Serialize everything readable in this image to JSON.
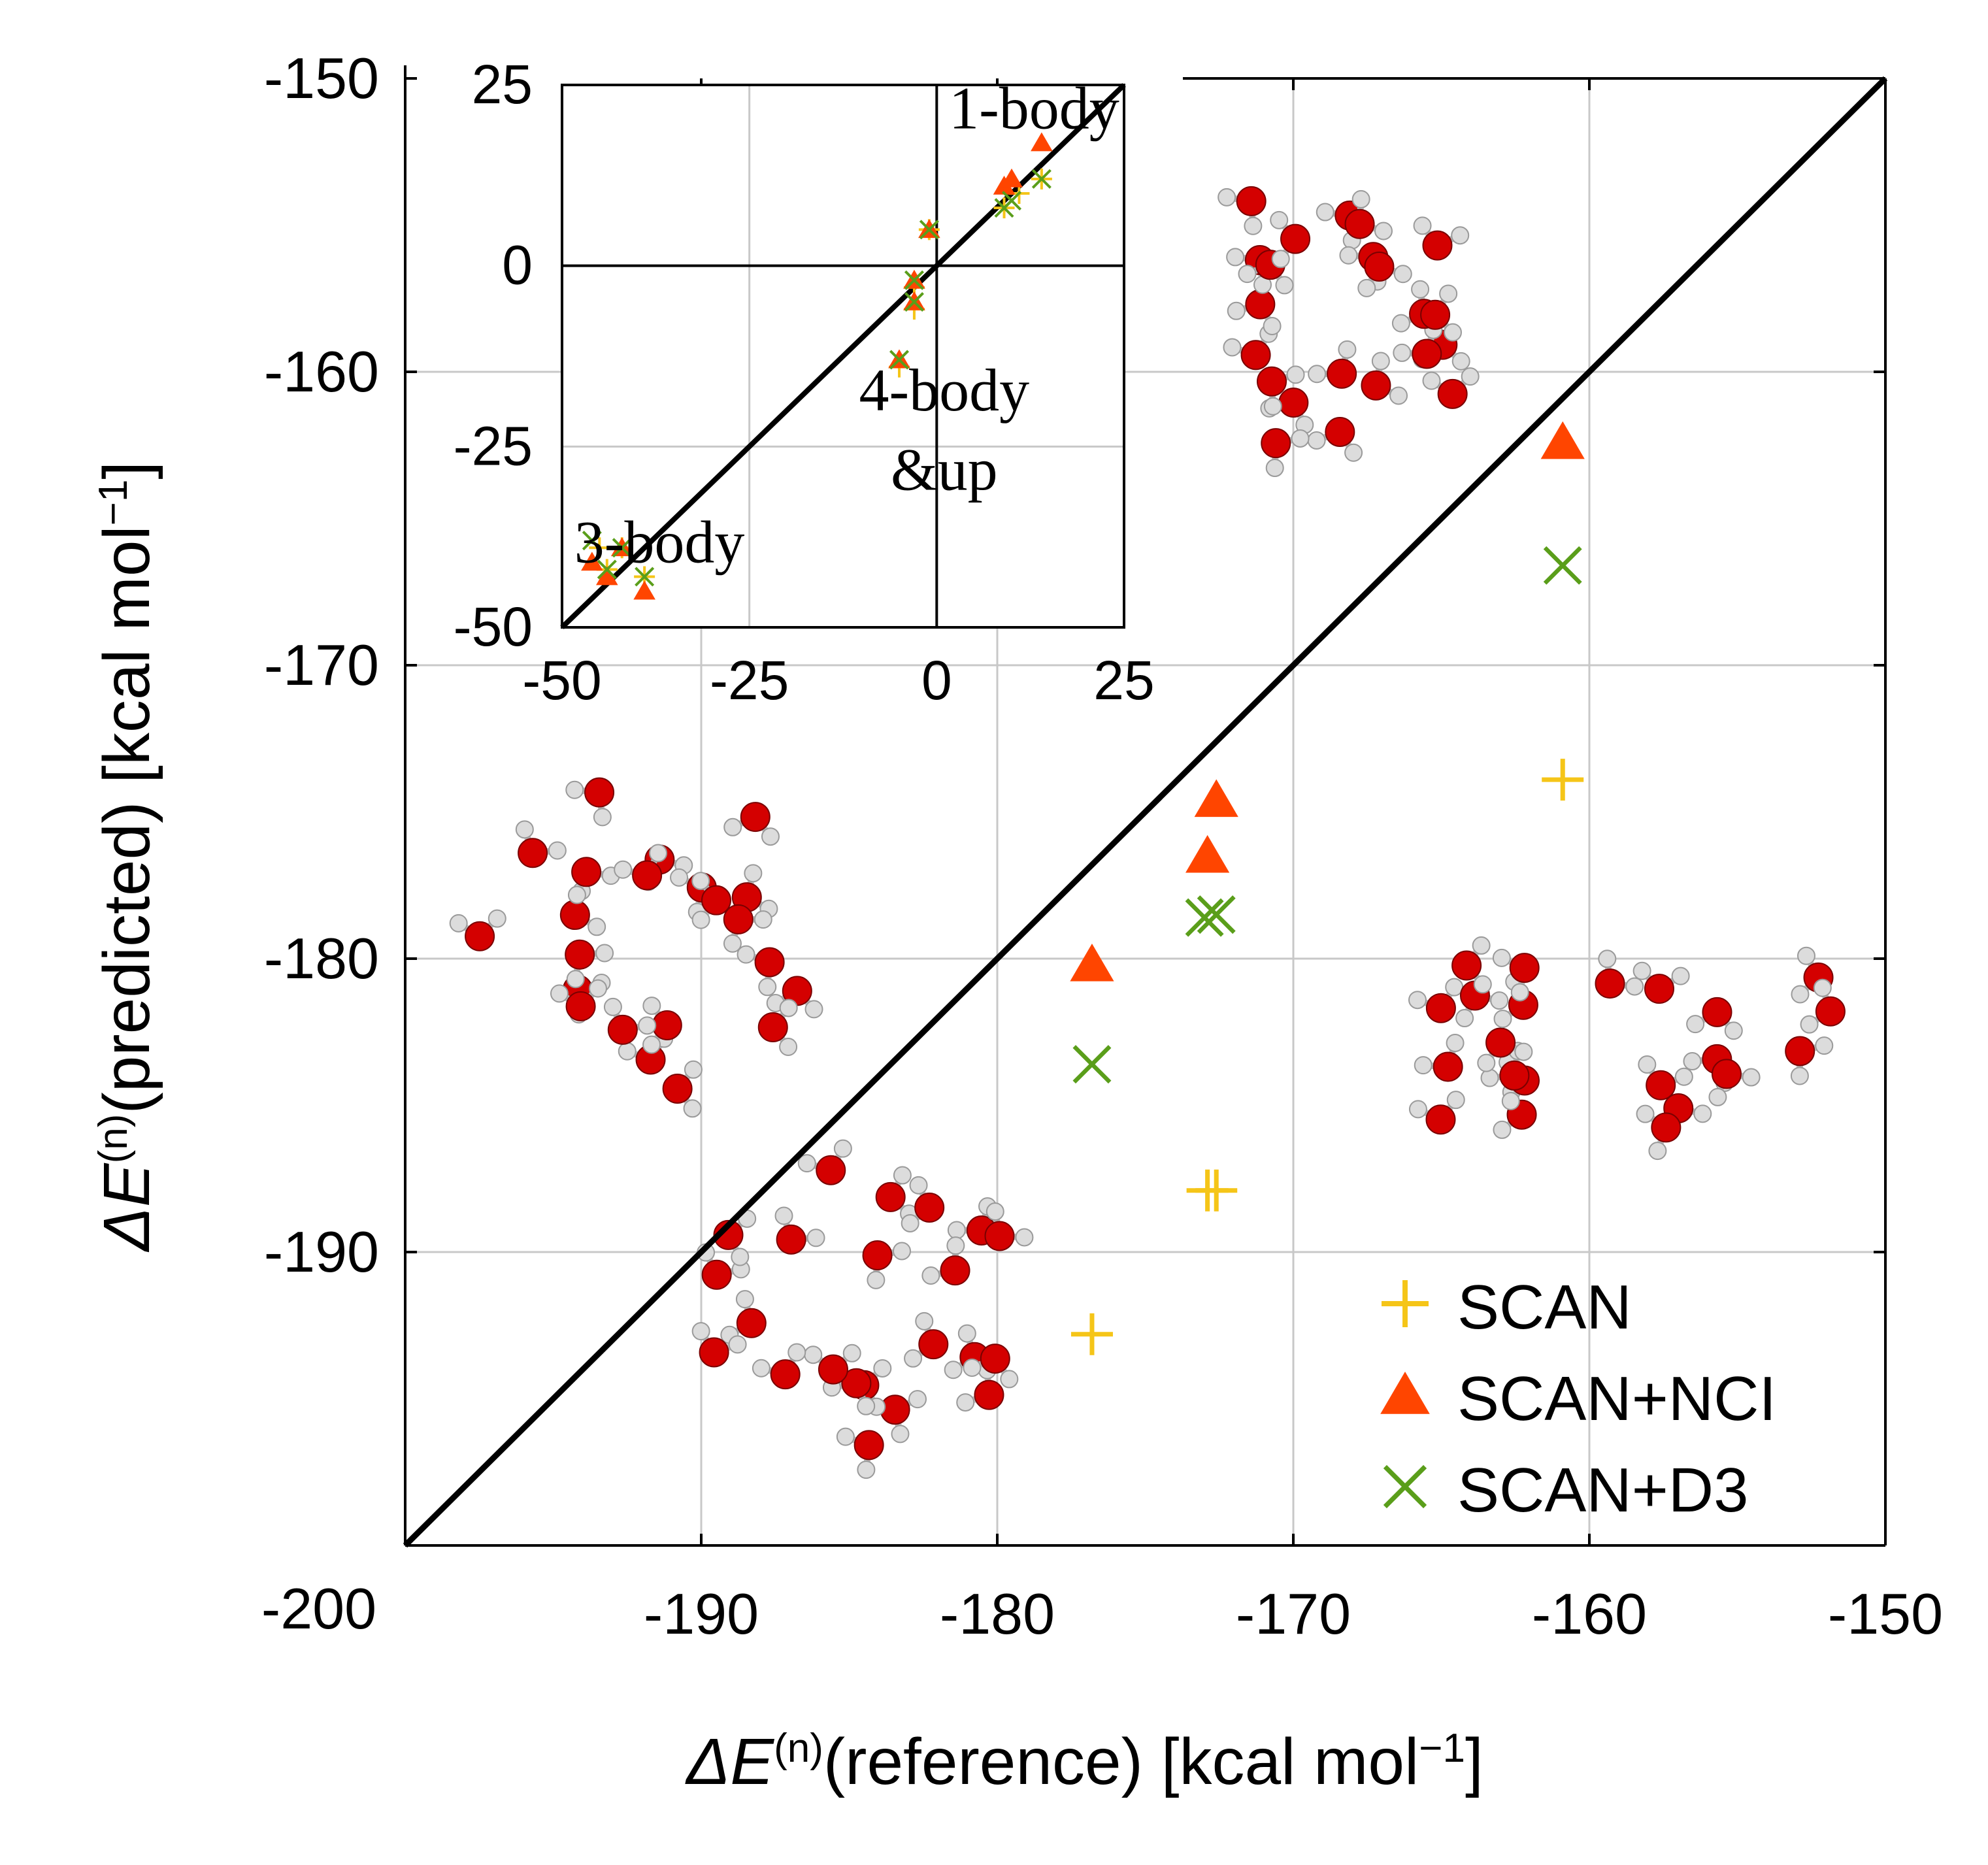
{
  "chart_data": [
    {
      "type": "scatter",
      "title": "",
      "xlabel": {
        "main": "ΔE",
        "sup": "(n)",
        "rest": "(reference) [kcal mol",
        "unit_sup": "−1",
        "close": "]"
      },
      "ylabel": {
        "main": "ΔE",
        "sup": "(n)",
        "rest": "(predicted) [kcal mol",
        "unit_sup": "−1",
        "close": "]"
      },
      "xlim": [
        -200,
        -150
      ],
      "ylim": [
        -200,
        -150
      ],
      "x_ticks": [
        -190,
        -180,
        -170,
        -160,
        -150
      ],
      "y_ticks": [
        -150,
        -160,
        -170,
        -180,
        -190
      ],
      "corner_label": "-200",
      "grid": true,
      "diagonal": [
        [
          -200,
          -200
        ],
        [
          -150,
          -150
        ]
      ],
      "legend_position": "bottom-right",
      "colors": {
        "SCAN": "#f5c518",
        "SCAN+NCI": "#ff4500",
        "SCAN+D3": "#5a9e1a"
      },
      "series": [
        {
          "name": "SCAN",
          "marker": "plus",
          "points": [
            [
              -176.8,
              -192.8
            ],
            [
              -172.9,
              -187.9
            ],
            [
              -172.6,
              -187.9
            ],
            [
              -160.9,
              -173.9
            ]
          ]
        },
        {
          "name": "SCAN+NCI",
          "marker": "triangle",
          "points": [
            [
              -176.8,
              -180.2
            ],
            [
              -172.9,
              -176.5
            ],
            [
              -172.6,
              -174.6
            ],
            [
              -160.9,
              -162.4
            ]
          ]
        },
        {
          "name": "SCAN+D3",
          "marker": "x",
          "points": [
            [
              -176.8,
              -183.6
            ],
            [
              -173.0,
              -178.6
            ],
            [
              -172.6,
              -178.5
            ],
            [
              -160.9,
              -166.6
            ]
          ]
        }
      ]
    },
    {
      "type": "scatter",
      "title": "",
      "xlim": [
        -50,
        25
      ],
      "ylim": [
        -50,
        25
      ],
      "x_ticks": [
        -50,
        -25,
        0,
        25
      ],
      "y_ticks": [
        25,
        0,
        -25,
        -50
      ],
      "grid": true,
      "diagonal": [
        [
          -50,
          -50
        ],
        [
          25,
          25
        ]
      ],
      "annotations": [
        {
          "text": "1-body",
          "x": 13,
          "y": 19
        },
        {
          "text": "4-body",
          "x": 1,
          "y": -20
        },
        {
          "text": "&up",
          "x": 1,
          "y": -31
        },
        {
          "text": "3-body",
          "x": -37,
          "y": -41
        }
      ],
      "series": [
        {
          "name": "SCAN",
          "marker": "plus",
          "points": [
            [
              -44,
              -42
            ],
            [
              -39,
              -43
            ],
            [
              -45,
              -39
            ],
            [
              -42,
              -39
            ],
            [
              -5,
              -14
            ],
            [
              -3,
              -6
            ],
            [
              -3,
              -3
            ],
            [
              -1,
              5
            ],
            [
              9,
              8
            ],
            [
              11,
              10
            ],
            [
              14,
              12
            ]
          ]
        },
        {
          "name": "SCAN+NCI",
          "marker": "triangle",
          "points": [
            [
              -46,
              -41
            ],
            [
              -44,
              -43
            ],
            [
              -39,
              -45
            ],
            [
              -42,
              -39
            ],
            [
              -5,
              -13
            ],
            [
              -3,
              -5
            ],
            [
              -3,
              -2
            ],
            [
              -1,
              5
            ],
            [
              9,
              11
            ],
            [
              10,
              12
            ],
            [
              14,
              17
            ]
          ]
        },
        {
          "name": "SCAN+D3",
          "marker": "x",
          "points": [
            [
              -46,
              -38
            ],
            [
              -44,
              -42
            ],
            [
              -39,
              -43
            ],
            [
              -42,
              -39
            ],
            [
              -5,
              -13
            ],
            [
              -3,
              -5
            ],
            [
              -3,
              -2
            ],
            [
              -1,
              5
            ],
            [
              9,
              8
            ],
            [
              10,
              9
            ],
            [
              14,
              12
            ]
          ]
        }
      ]
    }
  ],
  "legend": [
    {
      "marker": "plus",
      "label": "SCAN"
    },
    {
      "marker": "triangle",
      "label": "SCAN+NCI"
    },
    {
      "marker": "x",
      "label": "SCAN+D3"
    }
  ],
  "molecule_images": [
    "water-cluster-top-right",
    "water-cluster-left",
    "water-cluster-bottom",
    "water-cluster-right"
  ]
}
